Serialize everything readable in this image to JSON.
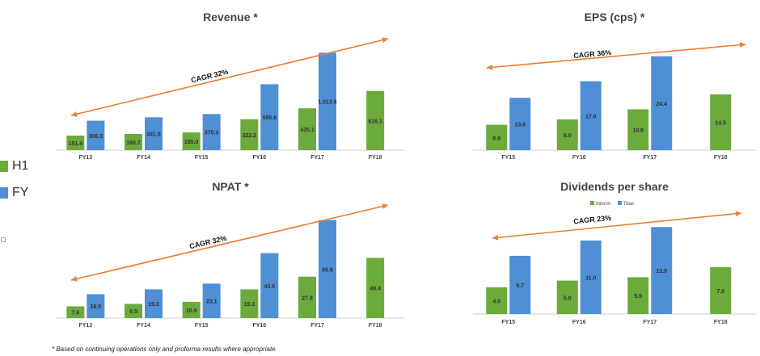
{
  "colors": {
    "h1": "#6aab3c",
    "fy": "#4f8fd6",
    "arrow": "#ec7d31",
    "axis": "#d0d0d0"
  },
  "legend": {
    "h1": "H1",
    "fy": "FY"
  },
  "footnote": "* Based on continuing operations only and proforma results where appropriate",
  "chart_data": [
    {
      "id": "revenue",
      "type": "bar",
      "title": "Revenue *",
      "categories": [
        "FY13",
        "FY14",
        "FY15",
        "FY16",
        "FY17",
        "FY18"
      ],
      "series": [
        {
          "name": "H1",
          "values": [
            151.4,
            168.7,
            185.0,
            322.2,
            435.1,
            616.1
          ],
          "labels": [
            "151.4",
            "168.7",
            "185.0",
            "322.2",
            "435.1",
            "616.1"
          ]
        },
        {
          "name": "FY",
          "values": [
            306.3,
            341.6,
            375.3,
            685.6,
            1013.6,
            null
          ],
          "labels": [
            "306.3",
            "341.6",
            "375.3",
            "685.6",
            "1,013.6",
            ""
          ]
        }
      ],
      "ylim": [
        0,
        1100
      ],
      "annotation": "CAGR 32%"
    },
    {
      "id": "eps",
      "type": "bar",
      "title": "EPS (cps) *",
      "categories": [
        "FY15",
        "FY16",
        "FY17",
        "FY18"
      ],
      "series": [
        {
          "name": "H1",
          "values": [
            6.6,
            8.0,
            10.6,
            14.5
          ],
          "labels": [
            "6.6",
            "8.0",
            "10.6",
            "14.5"
          ]
        },
        {
          "name": "FY",
          "values": [
            13.6,
            17.9,
            24.4,
            null
          ],
          "labels": [
            "13.6",
            "17.9",
            "24.4",
            ""
          ]
        }
      ],
      "ylim": [
        0,
        26
      ],
      "annotation": "CAGR 36%"
    },
    {
      "id": "npat",
      "type": "bar",
      "title": "NPAT *",
      "categories": [
        "FY13",
        "FY14",
        "FY15",
        "FY16",
        "FY17",
        "FY18"
      ],
      "series": [
        {
          "name": "H1",
          "values": [
            7.9,
            9.5,
            10.9,
            19.3,
            27.8,
            40.4
          ],
          "labels": [
            "7.9",
            "9.5",
            "10.9",
            "19.3",
            "27.8",
            "40.4"
          ]
        },
        {
          "name": "FY",
          "values": [
            16.0,
            19.3,
            23.1,
            43.6,
            65.8,
            null
          ],
          "labels": [
            "16.0",
            "19.3",
            "23.1",
            "43.6",
            "65.8",
            ""
          ]
        }
      ],
      "ylim": [
        0,
        71
      ],
      "annotation": "CAGR 32%"
    },
    {
      "id": "dps",
      "type": "bar",
      "title": "Dividends per share",
      "categories": [
        "FY15",
        "FY16",
        "FY17",
        "FY18"
      ],
      "series": [
        {
          "name": "Interim",
          "values": [
            4.0,
            5.0,
            5.5,
            7.0
          ],
          "labels": [
            "4.0",
            "5.0",
            "5.5",
            "7.0"
          ]
        },
        {
          "name": "Total",
          "values": [
            8.7,
            11.0,
            13.0,
            null
          ],
          "labels": [
            "8.7",
            "11.0",
            "13.0",
            ""
          ]
        }
      ],
      "ylim": [
        0,
        14
      ],
      "legend_labels": [
        "Interim",
        "Total"
      ],
      "annotation": "CAGR 23%"
    }
  ]
}
